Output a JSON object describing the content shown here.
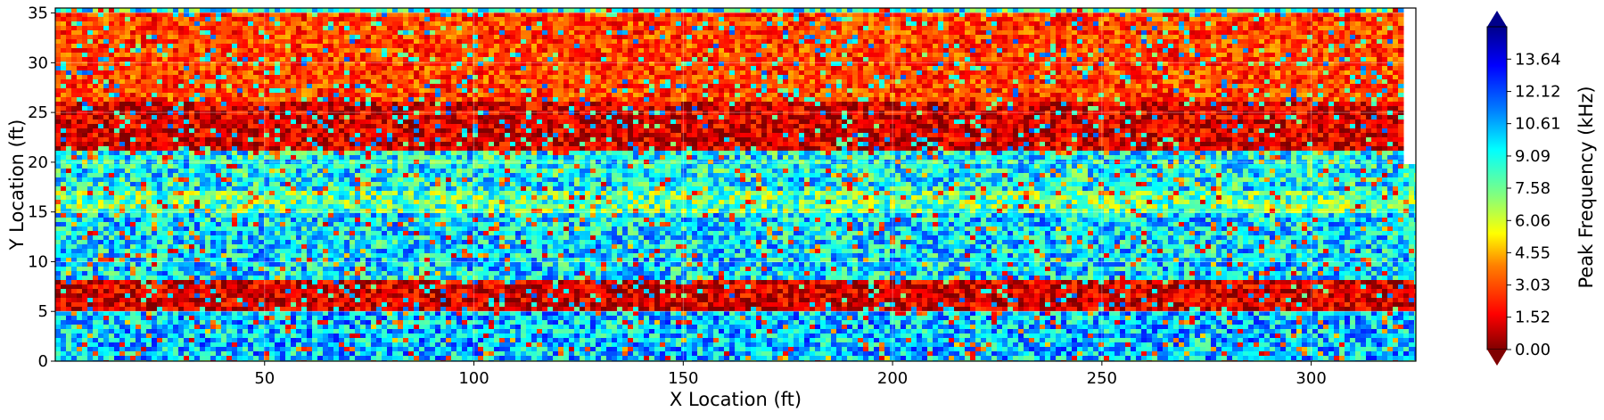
{
  "chart_data": {
    "type": "heatmap",
    "title": "",
    "xlabel": "X Location (ft)",
    "ylabel": "Y Location (ft)",
    "xlim": [
      0,
      325
    ],
    "ylim": [
      0,
      35.5
    ],
    "x_ticks": [
      50,
      100,
      150,
      200,
      250,
      300
    ],
    "y_ticks": [
      0,
      5,
      10,
      15,
      20,
      25,
      30,
      35
    ],
    "grid": true,
    "colormap": "jet_reversed",
    "colorbar": {
      "label": "Peak Frequency (kHz)",
      "range": [
        0.0,
        15.16
      ],
      "ticks": [
        "0.00",
        "1.52",
        "3.03",
        "4.55",
        "6.06",
        "7.58",
        "9.09",
        "10.61",
        "12.12",
        "13.64"
      ],
      "extend": "both",
      "colors": [
        "#800000",
        "#ff0000",
        "#ff8000",
        "#ffff00",
        "#80ff80",
        "#00ffff",
        "#0080ff",
        "#0000ff",
        "#00008b"
      ]
    },
    "bands": [
      {
        "y_range": [
          0,
          5
        ],
        "mean_kHz": 10.5
      },
      {
        "y_range": [
          5,
          8
        ],
        "mean_kHz": 1.5
      },
      {
        "y_range": [
          8,
          15
        ],
        "mean_kHz": 10.0
      },
      {
        "y_range": [
          15,
          17
        ],
        "mean_kHz": 8.0
      },
      {
        "y_range": [
          17,
          21
        ],
        "mean_kHz": 9.5
      },
      {
        "y_range": [
          21,
          26
        ],
        "mean_kHz": 1.5
      },
      {
        "y_range": [
          26,
          35
        ],
        "mean_kHz": 3.0
      }
    ]
  }
}
